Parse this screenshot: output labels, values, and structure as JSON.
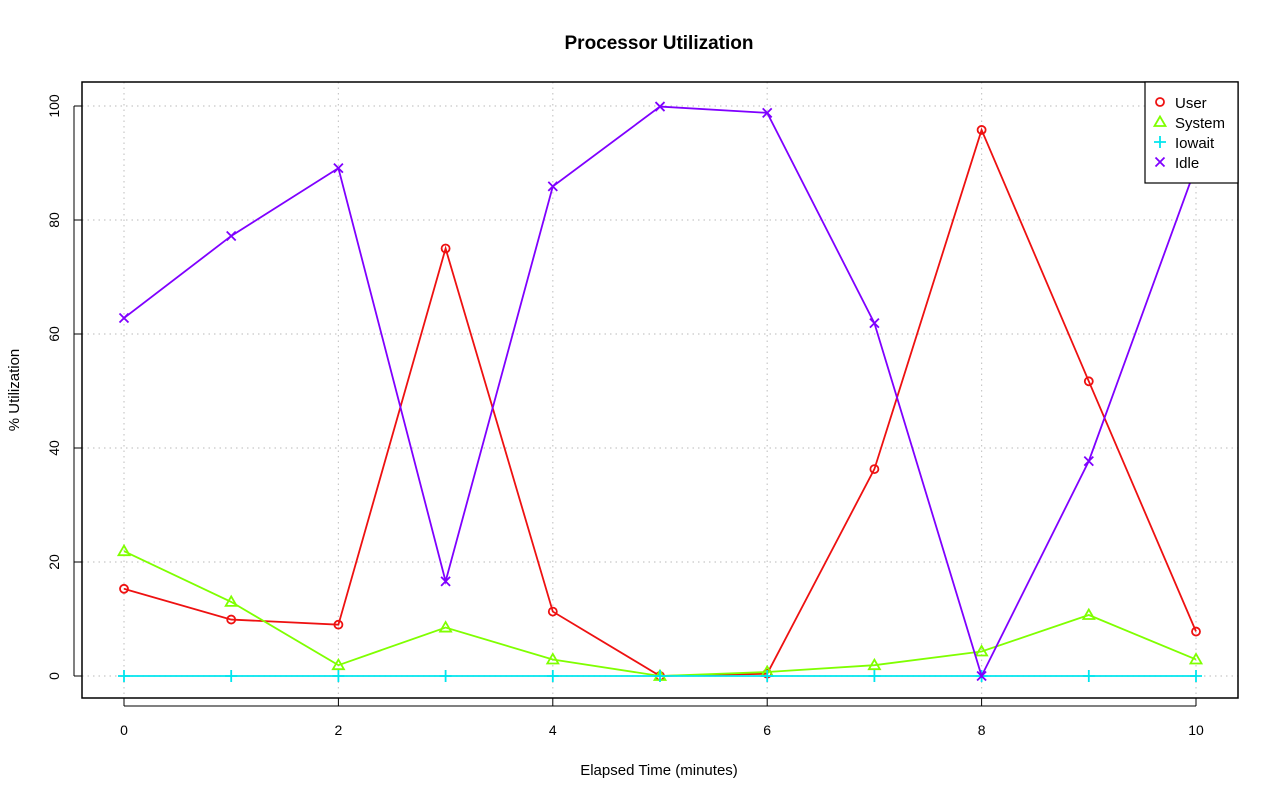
{
  "chart_data": {
    "type": "line",
    "title": "Processor Utilization",
    "xlabel": "Elapsed Time (minutes)",
    "ylabel": "% Utilization",
    "xlim": [
      0,
      10
    ],
    "ylim": [
      0,
      100
    ],
    "x_ticks": [
      "0",
      "2",
      "4",
      "6",
      "8",
      "10"
    ],
    "y_ticks": [
      "0",
      "20",
      "40",
      "60",
      "80",
      "100"
    ],
    "grid": true,
    "legend_position": "top-right",
    "x": [
      0,
      1,
      2,
      3,
      4,
      5,
      6,
      7,
      8,
      9,
      10
    ],
    "series": [
      {
        "name": "User",
        "color": "#ee1111",
        "marker": "circle",
        "values": [
          15.3,
          9.9,
          9.0,
          75.0,
          11.3,
          0.0,
          0.4,
          36.3,
          95.8,
          51.7,
          7.8
        ]
      },
      {
        "name": "System",
        "color": "#7fff00",
        "marker": "triangle",
        "values": [
          21.9,
          13.0,
          1.9,
          8.5,
          2.9,
          0.0,
          0.7,
          1.9,
          4.3,
          10.7,
          2.9
        ]
      },
      {
        "name": "Iowait",
        "color": "#00e5ee",
        "marker": "plus",
        "values": [
          0.0,
          0.0,
          0.0,
          0.0,
          0.0,
          0.0,
          0.0,
          0.0,
          0.0,
          0.0,
          0.0
        ]
      },
      {
        "name": "Idle",
        "color": "#7f00ff",
        "marker": "cross",
        "values": [
          62.8,
          77.2,
          89.1,
          16.6,
          85.9,
          99.9,
          98.8,
          61.9,
          0.0,
          37.7,
          89.4
        ]
      }
    ]
  }
}
